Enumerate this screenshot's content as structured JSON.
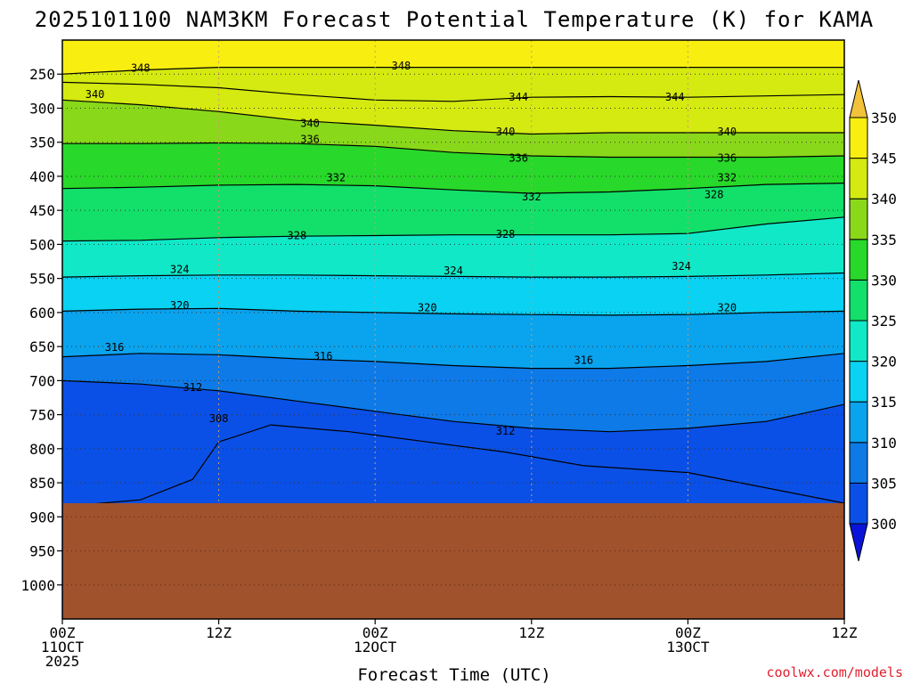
{
  "chart_data": {
    "type": "heatmap",
    "title": "2025101100 NAM3KM Forecast Potential Temperature (K) for KAMA",
    "xlabel": "Forecast Time (UTC)",
    "ylabel": "",
    "credit": "coolwx.com/models",
    "y_axis": {
      "units": "hPa",
      "range": [
        1050,
        200
      ],
      "ticks": [
        250,
        300,
        350,
        400,
        450,
        500,
        550,
        600,
        650,
        700,
        750,
        800,
        850,
        900,
        950,
        1000
      ]
    },
    "x_axis": {
      "units": "hours from 2025101100",
      "range": [
        0,
        60
      ],
      "ticks": [
        {
          "hour": 0,
          "line1": "00Z",
          "line2": "11OCT",
          "line3": "2025"
        },
        {
          "hour": 12,
          "line1": "12Z",
          "line2": "",
          "line3": ""
        },
        {
          "hour": 24,
          "line1": "00Z",
          "line2": "12OCT",
          "line3": ""
        },
        {
          "hour": 36,
          "line1": "12Z",
          "line2": "",
          "line3": ""
        },
        {
          "hour": 48,
          "line1": "00Z",
          "line2": "13OCT",
          "line3": ""
        },
        {
          "hour": 60,
          "line1": "12Z",
          "line2": "",
          "line3": ""
        }
      ]
    },
    "colorbar": {
      "levels": [
        300,
        305,
        310,
        315,
        320,
        325,
        330,
        335,
        340,
        345,
        350
      ],
      "colors": [
        "#0a14d8",
        "#0a50e6",
        "#0d7ae8",
        "#0aa3ee",
        "#09d2f2",
        "#10e8c8",
        "#12e06a",
        "#28d82a",
        "#8ad81a",
        "#d4ea10",
        "#f8ee10",
        "#f2c23a"
      ]
    },
    "ground": {
      "pressure_hpa": 880,
      "color": "#a0522d"
    },
    "series": [
      {
        "name": "308",
        "values": [
          [
            0,
            885
          ],
          [
            6,
            875
          ],
          [
            10,
            845
          ],
          [
            12,
            790
          ],
          [
            16,
            765
          ],
          [
            22,
            775
          ],
          [
            24,
            780
          ],
          [
            28,
            790
          ],
          [
            34,
            805
          ],
          [
            40,
            825
          ],
          [
            48,
            835
          ],
          [
            56,
            865
          ],
          [
            60,
            880
          ]
        ]
      },
      {
        "name": "312",
        "values": [
          [
            0,
            700
          ],
          [
            6,
            705
          ],
          [
            12,
            715
          ],
          [
            18,
            730
          ],
          [
            24,
            745
          ],
          [
            30,
            760
          ],
          [
            36,
            770
          ],
          [
            42,
            775
          ],
          [
            48,
            770
          ],
          [
            54,
            760
          ],
          [
            60,
            735
          ]
        ]
      },
      {
        "name": "316",
        "values": [
          [
            0,
            665
          ],
          [
            6,
            660
          ],
          [
            12,
            662
          ],
          [
            18,
            668
          ],
          [
            24,
            672
          ],
          [
            30,
            678
          ],
          [
            36,
            682
          ],
          [
            42,
            682
          ],
          [
            48,
            678
          ],
          [
            54,
            672
          ],
          [
            60,
            660
          ]
        ]
      },
      {
        "name": "320",
        "values": [
          [
            0,
            598
          ],
          [
            6,
            595
          ],
          [
            12,
            594
          ],
          [
            18,
            598
          ],
          [
            24,
            600
          ],
          [
            30,
            602
          ],
          [
            36,
            603
          ],
          [
            42,
            604
          ],
          [
            48,
            603
          ],
          [
            54,
            600
          ],
          [
            60,
            598
          ]
        ]
      },
      {
        "name": "324",
        "values": [
          [
            0,
            548
          ],
          [
            6,
            546
          ],
          [
            12,
            545
          ],
          [
            18,
            545
          ],
          [
            24,
            546
          ],
          [
            30,
            547
          ],
          [
            36,
            548
          ],
          [
            42,
            548
          ],
          [
            48,
            547
          ],
          [
            54,
            545
          ],
          [
            60,
            542
          ]
        ]
      },
      {
        "name": "328",
        "values": [
          [
            0,
            495
          ],
          [
            6,
            494
          ],
          [
            12,
            490
          ],
          [
            18,
            488
          ],
          [
            24,
            487
          ],
          [
            30,
            486
          ],
          [
            36,
            486
          ],
          [
            42,
            486
          ],
          [
            48,
            484
          ],
          [
            54,
            470
          ],
          [
            60,
            460
          ]
        ]
      },
      {
        "name": "332",
        "values": [
          [
            0,
            418
          ],
          [
            6,
            416
          ],
          [
            12,
            413
          ],
          [
            18,
            412
          ],
          [
            24,
            414
          ],
          [
            30,
            420
          ],
          [
            36,
            425
          ],
          [
            42,
            423
          ],
          [
            48,
            418
          ],
          [
            54,
            412
          ],
          [
            60,
            410
          ]
        ]
      },
      {
        "name": "336",
        "values": [
          [
            0,
            352
          ],
          [
            6,
            352
          ],
          [
            12,
            351
          ],
          [
            18,
            352
          ],
          [
            24,
            356
          ],
          [
            30,
            365
          ],
          [
            36,
            370
          ],
          [
            42,
            372
          ],
          [
            48,
            372
          ],
          [
            54,
            372
          ],
          [
            60,
            370
          ]
        ]
      },
      {
        "name": "340",
        "values": [
          [
            0,
            288
          ],
          [
            6,
            295
          ],
          [
            12,
            305
          ],
          [
            18,
            318
          ],
          [
            24,
            325
          ],
          [
            30,
            333
          ],
          [
            36,
            338
          ],
          [
            42,
            336
          ],
          [
            48,
            336
          ],
          [
            54,
            336
          ],
          [
            60,
            336
          ]
        ]
      },
      {
        "name": "344",
        "values": [
          [
            0,
            262
          ],
          [
            6,
            265
          ],
          [
            12,
            270
          ],
          [
            18,
            280
          ],
          [
            24,
            288
          ],
          [
            30,
            290
          ],
          [
            36,
            284
          ],
          [
            42,
            283
          ],
          [
            48,
            284
          ],
          [
            54,
            282
          ],
          [
            60,
            280
          ]
        ]
      },
      {
        "name": "348",
        "values": [
          [
            0,
            250
          ],
          [
            6,
            244
          ],
          [
            12,
            240
          ],
          [
            18,
            240
          ],
          [
            24,
            240
          ],
          [
            30,
            240
          ],
          [
            36,
            240
          ],
          [
            42,
            240
          ],
          [
            48,
            240
          ],
          [
            54,
            240
          ],
          [
            60,
            240
          ]
        ]
      }
    ],
    "contour_labels": [
      {
        "text": "348",
        "hour": 6,
        "pressure": 241
      },
      {
        "text": "348",
        "hour": 26,
        "pressure": 238
      },
      {
        "text": "340",
        "hour": 2.5,
        "pressure": 280
      },
      {
        "text": "344",
        "hour": 35,
        "pressure": 284
      },
      {
        "text": "344",
        "hour": 47,
        "pressure": 284
      },
      {
        "text": "340",
        "hour": 19,
        "pressure": 322
      },
      {
        "text": "340",
        "hour": 34,
        "pressure": 335
      },
      {
        "text": "340",
        "hour": 51,
        "pressure": 335
      },
      {
        "text": "336",
        "hour": 19,
        "pressure": 346
      },
      {
        "text": "336",
        "hour": 35,
        "pressure": 373
      },
      {
        "text": "336",
        "hour": 51,
        "pressure": 373
      },
      {
        "text": "332",
        "hour": 21,
        "pressure": 402
      },
      {
        "text": "332",
        "hour": 36,
        "pressure": 430
      },
      {
        "text": "332",
        "hour": 51,
        "pressure": 402
      },
      {
        "text": "328",
        "hour": 50,
        "pressure": 427
      },
      {
        "text": "328",
        "hour": 18,
        "pressure": 487
      },
      {
        "text": "328",
        "hour": 34,
        "pressure": 485
      },
      {
        "text": "324",
        "hour": 9,
        "pressure": 537
      },
      {
        "text": "324",
        "hour": 30,
        "pressure": 539
      },
      {
        "text": "324",
        "hour": 47.5,
        "pressure": 532
      },
      {
        "text": "320",
        "hour": 9,
        "pressure": 590
      },
      {
        "text": "320",
        "hour": 28,
        "pressure": 593
      },
      {
        "text": "320",
        "hour": 51,
        "pressure": 593
      },
      {
        "text": "316",
        "hour": 4,
        "pressure": 651
      },
      {
        "text": "316",
        "hour": 20,
        "pressure": 664
      },
      {
        "text": "316",
        "hour": 40,
        "pressure": 670
      },
      {
        "text": "312",
        "hour": 10,
        "pressure": 710
      },
      {
        "text": "312",
        "hour": 34,
        "pressure": 774
      },
      {
        "text": "308",
        "hour": 12,
        "pressure": 756
      }
    ]
  }
}
